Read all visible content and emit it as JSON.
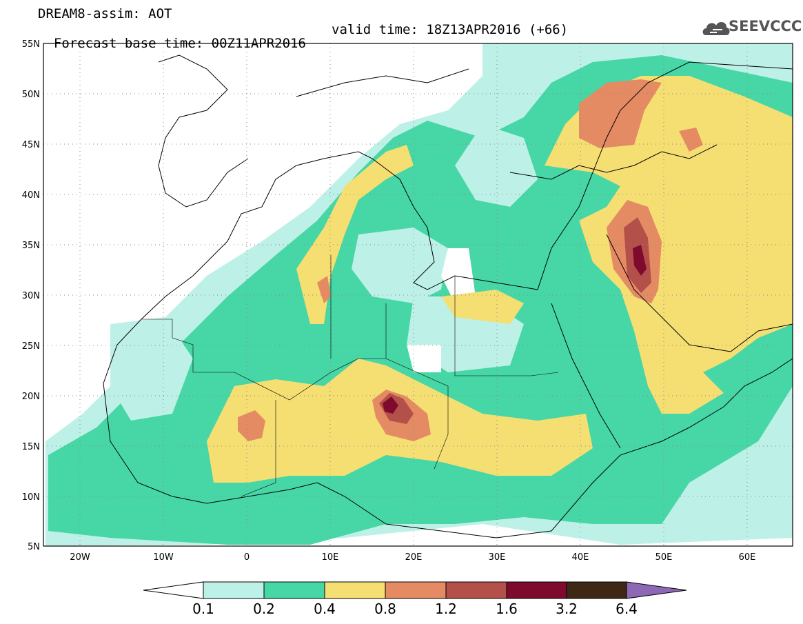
{
  "header": {
    "line1": "DREAM8-assim: AOT",
    "forecast_base": "Forecast base time: 00Z11APR2016",
    "valid_time": "valid time: 18Z13APR2016 (+66)",
    "logo_text": "SEEVCCC"
  },
  "map": {
    "lon_range": [
      -25,
      65
    ],
    "lat_range": [
      5,
      55
    ],
    "lat_labels": [
      "55N",
      "50N",
      "45N",
      "40N",
      "35N",
      "30N",
      "25N",
      "20N",
      "15N",
      "10N",
      "5N"
    ],
    "lon_labels": [
      "20W",
      "10W",
      "0",
      "10E",
      "20E",
      "30E",
      "40E",
      "50E",
      "60E"
    ],
    "background_color": "#ffffff"
  },
  "colorbar": {
    "labels": [
      "0.1",
      "0.2",
      "0.4",
      "0.8",
      "1.2",
      "1.6",
      "3.2",
      "6.4"
    ],
    "colors": [
      "#bdf0e6",
      "#47d6a6",
      "#f5df73",
      "#e48b64",
      "#b4504a",
      "#7e0a2e",
      "#3f2716",
      "#8d68b4"
    ]
  }
}
